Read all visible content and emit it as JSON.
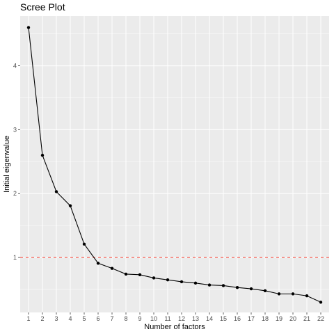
{
  "chart_data": {
    "type": "line",
    "title": "Scree Plot",
    "xlabel": "Number of factors",
    "ylabel": "Initial eigenvalue",
    "x": [
      1,
      2,
      3,
      4,
      5,
      6,
      7,
      8,
      9,
      10,
      11,
      12,
      13,
      14,
      15,
      16,
      17,
      18,
      19,
      20,
      21,
      22
    ],
    "y": [
      4.6,
      2.6,
      2.03,
      1.81,
      1.21,
      0.91,
      0.83,
      0.74,
      0.73,
      0.68,
      0.65,
      0.62,
      0.6,
      0.57,
      0.56,
      0.53,
      0.51,
      0.48,
      0.43,
      0.43,
      0.4,
      0.3
    ],
    "xlim": [
      0.4,
      22.6
    ],
    "ylim": [
      0.14,
      4.78
    ],
    "y_ticks": [
      1,
      2,
      3,
      4
    ],
    "reference_line": {
      "y": 1,
      "style": "dashed",
      "color": "#f8766d"
    },
    "grid": true,
    "legend": "none",
    "colors": {
      "panel": "#ebebeb",
      "grid_major": "#ffffff",
      "line": "#000000",
      "points": "#000000"
    }
  }
}
